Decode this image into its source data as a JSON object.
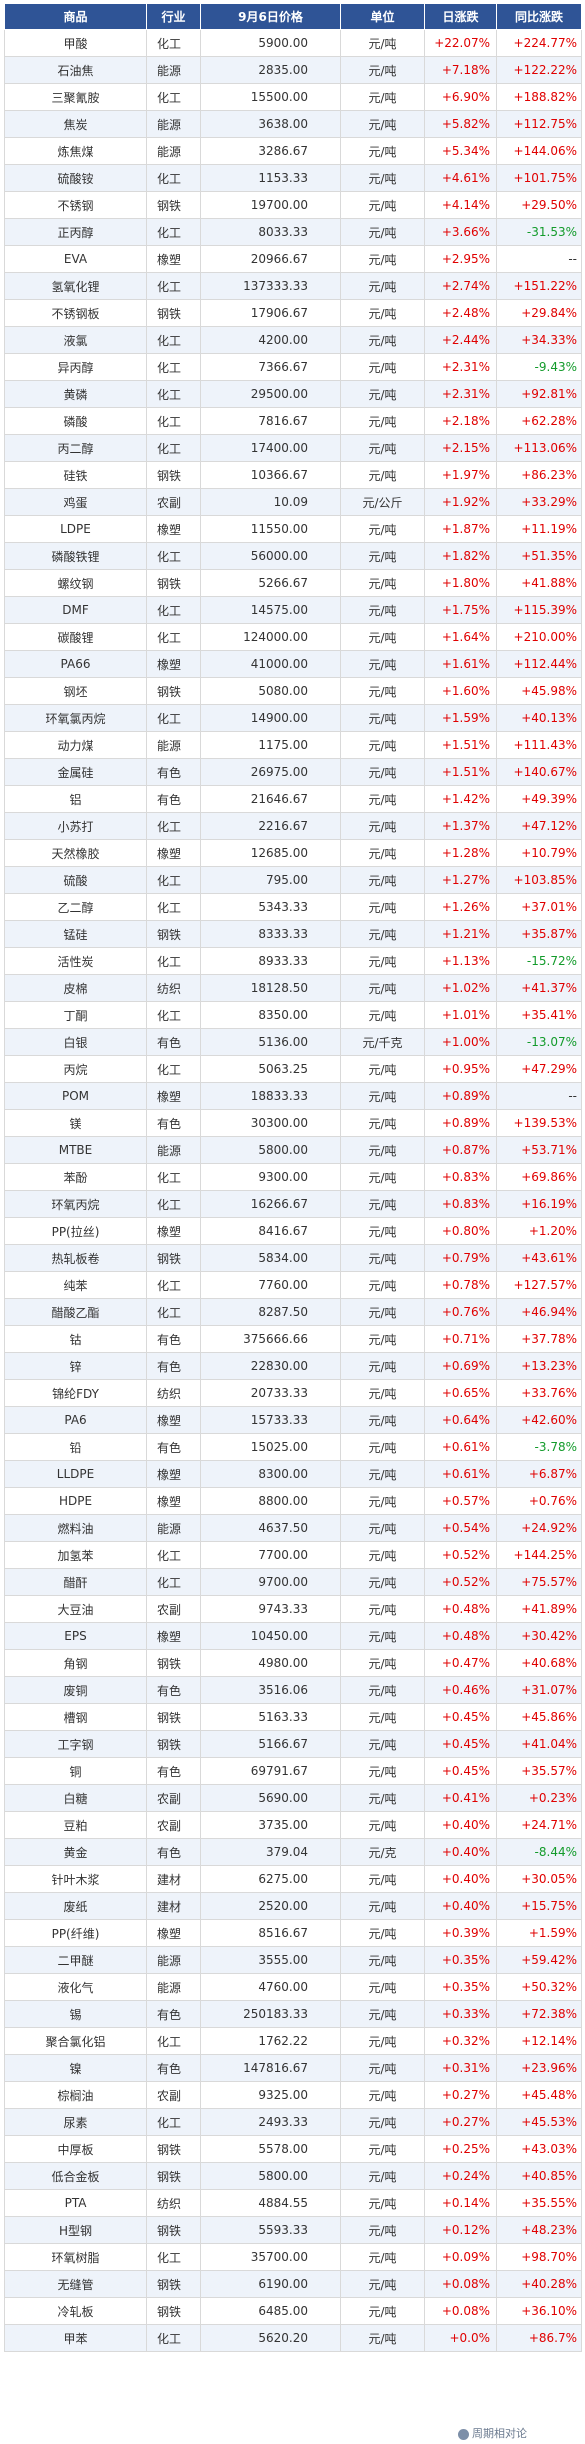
{
  "headers": {
    "name": "商品",
    "industry": "行业",
    "price": "9月6日价格",
    "unit": "单位",
    "day_change": "日涨跌",
    "yoy_change": "同比涨跌"
  },
  "rows": [
    {
      "name": "甲酸",
      "industry": "化工",
      "price": "5900.00",
      "unit": "元/吨",
      "day": "+22.07%",
      "yoy": "+224.77%"
    },
    {
      "name": "石油焦",
      "industry": "能源",
      "price": "2835.00",
      "unit": "元/吨",
      "day": "+7.18%",
      "yoy": "+122.22%"
    },
    {
      "name": "三聚氰胺",
      "industry": "化工",
      "price": "15500.00",
      "unit": "元/吨",
      "day": "+6.90%",
      "yoy": "+188.82%"
    },
    {
      "name": "焦炭",
      "industry": "能源",
      "price": "3638.00",
      "unit": "元/吨",
      "day": "+5.82%",
      "yoy": "+112.75%"
    },
    {
      "name": "炼焦煤",
      "industry": "能源",
      "price": "3286.67",
      "unit": "元/吨",
      "day": "+5.34%",
      "yoy": "+144.06%"
    },
    {
      "name": "硫酸铵",
      "industry": "化工",
      "price": "1153.33",
      "unit": "元/吨",
      "day": "+4.61%",
      "yoy": "+101.75%"
    },
    {
      "name": "不锈钢",
      "industry": "钢铁",
      "price": "19700.00",
      "unit": "元/吨",
      "day": "+4.14%",
      "yoy": "+29.50%"
    },
    {
      "name": "正丙醇",
      "industry": "化工",
      "price": "8033.33",
      "unit": "元/吨",
      "day": "+3.66%",
      "yoy": "-31.53%"
    },
    {
      "name": "EVA",
      "industry": "橡塑",
      "price": "20966.67",
      "unit": "元/吨",
      "day": "+2.95%",
      "yoy": "--"
    },
    {
      "name": "氢氧化锂",
      "industry": "化工",
      "price": "137333.33",
      "unit": "元/吨",
      "day": "+2.74%",
      "yoy": "+151.22%"
    },
    {
      "name": "不锈钢板",
      "industry": "钢铁",
      "price": "17906.67",
      "unit": "元/吨",
      "day": "+2.48%",
      "yoy": "+29.84%"
    },
    {
      "name": "液氯",
      "industry": "化工",
      "price": "4200.00",
      "unit": "元/吨",
      "day": "+2.44%",
      "yoy": "+34.33%"
    },
    {
      "name": "异丙醇",
      "industry": "化工",
      "price": "7366.67",
      "unit": "元/吨",
      "day": "+2.31%",
      "yoy": "-9.43%"
    },
    {
      "name": "黄磷",
      "industry": "化工",
      "price": "29500.00",
      "unit": "元/吨",
      "day": "+2.31%",
      "yoy": "+92.81%"
    },
    {
      "name": "磷酸",
      "industry": "化工",
      "price": "7816.67",
      "unit": "元/吨",
      "day": "+2.18%",
      "yoy": "+62.28%"
    },
    {
      "name": "丙二醇",
      "industry": "化工",
      "price": "17400.00",
      "unit": "元/吨",
      "day": "+2.15%",
      "yoy": "+113.06%"
    },
    {
      "name": "硅铁",
      "industry": "钢铁",
      "price": "10366.67",
      "unit": "元/吨",
      "day": "+1.97%",
      "yoy": "+86.23%"
    },
    {
      "name": "鸡蛋",
      "industry": "农副",
      "price": "10.09",
      "unit": "元/公斤",
      "day": "+1.92%",
      "yoy": "+33.29%"
    },
    {
      "name": "LDPE",
      "industry": "橡塑",
      "price": "11550.00",
      "unit": "元/吨",
      "day": "+1.87%",
      "yoy": "+11.19%"
    },
    {
      "name": "磷酸铁锂",
      "industry": "化工",
      "price": "56000.00",
      "unit": "元/吨",
      "day": "+1.82%",
      "yoy": "+51.35%"
    },
    {
      "name": "螺纹钢",
      "industry": "钢铁",
      "price": "5266.67",
      "unit": "元/吨",
      "day": "+1.80%",
      "yoy": "+41.88%"
    },
    {
      "name": "DMF",
      "industry": "化工",
      "price": "14575.00",
      "unit": "元/吨",
      "day": "+1.75%",
      "yoy": "+115.39%"
    },
    {
      "name": "碳酸锂",
      "industry": "化工",
      "price": "124000.00",
      "unit": "元/吨",
      "day": "+1.64%",
      "yoy": "+210.00%"
    },
    {
      "name": "PA66",
      "industry": "橡塑",
      "price": "41000.00",
      "unit": "元/吨",
      "day": "+1.61%",
      "yoy": "+112.44%"
    },
    {
      "name": "钢坯",
      "industry": "钢铁",
      "price": "5080.00",
      "unit": "元/吨",
      "day": "+1.60%",
      "yoy": "+45.98%"
    },
    {
      "name": "环氧氯丙烷",
      "industry": "化工",
      "price": "14900.00",
      "unit": "元/吨",
      "day": "+1.59%",
      "yoy": "+40.13%"
    },
    {
      "name": "动力煤",
      "industry": "能源",
      "price": "1175.00",
      "unit": "元/吨",
      "day": "+1.51%",
      "yoy": "+111.43%"
    },
    {
      "name": "金属硅",
      "industry": "有色",
      "price": "26975.00",
      "unit": "元/吨",
      "day": "+1.51%",
      "yoy": "+140.67%"
    },
    {
      "name": "铝",
      "industry": "有色",
      "price": "21646.67",
      "unit": "元/吨",
      "day": "+1.42%",
      "yoy": "+49.39%"
    },
    {
      "name": "小苏打",
      "industry": "化工",
      "price": "2216.67",
      "unit": "元/吨",
      "day": "+1.37%",
      "yoy": "+47.12%"
    },
    {
      "name": "天然橡胶",
      "industry": "橡塑",
      "price": "12685.00",
      "unit": "元/吨",
      "day": "+1.28%",
      "yoy": "+10.79%"
    },
    {
      "name": "硫酸",
      "industry": "化工",
      "price": "795.00",
      "unit": "元/吨",
      "day": "+1.27%",
      "yoy": "+103.85%"
    },
    {
      "name": "乙二醇",
      "industry": "化工",
      "price": "5343.33",
      "unit": "元/吨",
      "day": "+1.26%",
      "yoy": "+37.01%"
    },
    {
      "name": "锰硅",
      "industry": "钢铁",
      "price": "8333.33",
      "unit": "元/吨",
      "day": "+1.21%",
      "yoy": "+35.87%"
    },
    {
      "name": "活性炭",
      "industry": "化工",
      "price": "8933.33",
      "unit": "元/吨",
      "day": "+1.13%",
      "yoy": "-15.72%"
    },
    {
      "name": "皮棉",
      "industry": "纺织",
      "price": "18128.50",
      "unit": "元/吨",
      "day": "+1.02%",
      "yoy": "+41.37%"
    },
    {
      "name": "丁酮",
      "industry": "化工",
      "price": "8350.00",
      "unit": "元/吨",
      "day": "+1.01%",
      "yoy": "+35.41%"
    },
    {
      "name": "白银",
      "industry": "有色",
      "price": "5136.00",
      "unit": "元/千克",
      "day": "+1.00%",
      "yoy": "-13.07%"
    },
    {
      "name": "丙烷",
      "industry": "化工",
      "price": "5063.25",
      "unit": "元/吨",
      "day": "+0.95%",
      "yoy": "+47.29%"
    },
    {
      "name": "POM",
      "industry": "橡塑",
      "price": "18833.33",
      "unit": "元/吨",
      "day": "+0.89%",
      "yoy": "--"
    },
    {
      "name": "镁",
      "industry": "有色",
      "price": "30300.00",
      "unit": "元/吨",
      "day": "+0.89%",
      "yoy": "+139.53%"
    },
    {
      "name": "MTBE",
      "industry": "能源",
      "price": "5800.00",
      "unit": "元/吨",
      "day": "+0.87%",
      "yoy": "+53.71%"
    },
    {
      "name": "苯酚",
      "industry": "化工",
      "price": "9300.00",
      "unit": "元/吨",
      "day": "+0.83%",
      "yoy": "+69.86%"
    },
    {
      "name": "环氧丙烷",
      "industry": "化工",
      "price": "16266.67",
      "unit": "元/吨",
      "day": "+0.83%",
      "yoy": "+16.19%"
    },
    {
      "name": "PP(拉丝)",
      "industry": "橡塑",
      "price": "8416.67",
      "unit": "元/吨",
      "day": "+0.80%",
      "yoy": "+1.20%"
    },
    {
      "name": "热轧板卷",
      "industry": "钢铁",
      "price": "5834.00",
      "unit": "元/吨",
      "day": "+0.79%",
      "yoy": "+43.61%"
    },
    {
      "name": "纯苯",
      "industry": "化工",
      "price": "7760.00",
      "unit": "元/吨",
      "day": "+0.78%",
      "yoy": "+127.57%"
    },
    {
      "name": "醋酸乙酯",
      "industry": "化工",
      "price": "8287.50",
      "unit": "元/吨",
      "day": "+0.76%",
      "yoy": "+46.94%"
    },
    {
      "name": "钴",
      "industry": "有色",
      "price": "375666.66",
      "unit": "元/吨",
      "day": "+0.71%",
      "yoy": "+37.78%"
    },
    {
      "name": "锌",
      "industry": "有色",
      "price": "22830.00",
      "unit": "元/吨",
      "day": "+0.69%",
      "yoy": "+13.23%"
    },
    {
      "name": "锦纶FDY",
      "industry": "纺织",
      "price": "20733.33",
      "unit": "元/吨",
      "day": "+0.65%",
      "yoy": "+33.76%"
    },
    {
      "name": "PA6",
      "industry": "橡塑",
      "price": "15733.33",
      "unit": "元/吨",
      "day": "+0.64%",
      "yoy": "+42.60%"
    },
    {
      "name": "铅",
      "industry": "有色",
      "price": "15025.00",
      "unit": "元/吨",
      "day": "+0.61%",
      "yoy": "-3.78%"
    },
    {
      "name": "LLDPE",
      "industry": "橡塑",
      "price": "8300.00",
      "unit": "元/吨",
      "day": "+0.61%",
      "yoy": "+6.87%"
    },
    {
      "name": "HDPE",
      "industry": "橡塑",
      "price": "8800.00",
      "unit": "元/吨",
      "day": "+0.57%",
      "yoy": "+0.76%"
    },
    {
      "name": "燃料油",
      "industry": "能源",
      "price": "4637.50",
      "unit": "元/吨",
      "day": "+0.54%",
      "yoy": "+24.92%"
    },
    {
      "name": "加氢苯",
      "industry": "化工",
      "price": "7700.00",
      "unit": "元/吨",
      "day": "+0.52%",
      "yoy": "+144.25%"
    },
    {
      "name": "醋酐",
      "industry": "化工",
      "price": "9700.00",
      "unit": "元/吨",
      "day": "+0.52%",
      "yoy": "+75.57%"
    },
    {
      "name": "大豆油",
      "industry": "农副",
      "price": "9743.33",
      "unit": "元/吨",
      "day": "+0.48%",
      "yoy": "+41.89%"
    },
    {
      "name": "EPS",
      "industry": "橡塑",
      "price": "10450.00",
      "unit": "元/吨",
      "day": "+0.48%",
      "yoy": "+30.42%"
    },
    {
      "name": "角钢",
      "industry": "钢铁",
      "price": "4980.00",
      "unit": "元/吨",
      "day": "+0.47%",
      "yoy": "+40.68%"
    },
    {
      "name": "废铜",
      "industry": "有色",
      "price": "3516.06",
      "unit": "元/吨",
      "day": "+0.46%",
      "yoy": "+31.07%"
    },
    {
      "name": "槽钢",
      "industry": "钢铁",
      "price": "5163.33",
      "unit": "元/吨",
      "day": "+0.45%",
      "yoy": "+45.86%"
    },
    {
      "name": "工字钢",
      "industry": "钢铁",
      "price": "5166.67",
      "unit": "元/吨",
      "day": "+0.45%",
      "yoy": "+41.04%"
    },
    {
      "name": "铜",
      "industry": "有色",
      "price": "69791.67",
      "unit": "元/吨",
      "day": "+0.45%",
      "yoy": "+35.57%"
    },
    {
      "name": "白糖",
      "industry": "农副",
      "price": "5690.00",
      "unit": "元/吨",
      "day": "+0.41%",
      "yoy": "+0.23%"
    },
    {
      "name": "豆粕",
      "industry": "农副",
      "price": "3735.00",
      "unit": "元/吨",
      "day": "+0.40%",
      "yoy": "+24.71%"
    },
    {
      "name": "黄金",
      "industry": "有色",
      "price": "379.04",
      "unit": "元/克",
      "day": "+0.40%",
      "yoy": "-8.44%"
    },
    {
      "name": "针叶木浆",
      "industry": "建材",
      "price": "6275.00",
      "unit": "元/吨",
      "day": "+0.40%",
      "yoy": "+30.05%"
    },
    {
      "name": "废纸",
      "industry": "建材",
      "price": "2520.00",
      "unit": "元/吨",
      "day": "+0.40%",
      "yoy": "+15.75%"
    },
    {
      "name": "PP(纤维)",
      "industry": "橡塑",
      "price": "8516.67",
      "unit": "元/吨",
      "day": "+0.39%",
      "yoy": "+1.59%"
    },
    {
      "name": "二甲醚",
      "industry": "能源",
      "price": "3555.00",
      "unit": "元/吨",
      "day": "+0.35%",
      "yoy": "+59.42%"
    },
    {
      "name": "液化气",
      "industry": "能源",
      "price": "4760.00",
      "unit": "元/吨",
      "day": "+0.35%",
      "yoy": "+50.32%"
    },
    {
      "name": "锡",
      "industry": "有色",
      "price": "250183.33",
      "unit": "元/吨",
      "day": "+0.33%",
      "yoy": "+72.38%"
    },
    {
      "name": "聚合氯化铝",
      "industry": "化工",
      "price": "1762.22",
      "unit": "元/吨",
      "day": "+0.32%",
      "yoy": "+12.14%"
    },
    {
      "name": "镍",
      "industry": "有色",
      "price": "147816.67",
      "unit": "元/吨",
      "day": "+0.31%",
      "yoy": "+23.96%"
    },
    {
      "name": "棕榈油",
      "industry": "农副",
      "price": "9325.00",
      "unit": "元/吨",
      "day": "+0.27%",
      "yoy": "+45.48%"
    },
    {
      "name": "尿素",
      "industry": "化工",
      "price": "2493.33",
      "unit": "元/吨",
      "day": "+0.27%",
      "yoy": "+45.53%"
    },
    {
      "name": "中厚板",
      "industry": "钢铁",
      "price": "5578.00",
      "unit": "元/吨",
      "day": "+0.25%",
      "yoy": "+43.03%"
    },
    {
      "name": "低合金板",
      "industry": "钢铁",
      "price": "5800.00",
      "unit": "元/吨",
      "day": "+0.24%",
      "yoy": "+40.85%"
    },
    {
      "name": "PTA",
      "industry": "纺织",
      "price": "4884.55",
      "unit": "元/吨",
      "day": "+0.14%",
      "yoy": "+35.55%"
    },
    {
      "name": "H型钢",
      "industry": "钢铁",
      "price": "5593.33",
      "unit": "元/吨",
      "day": "+0.12%",
      "yoy": "+48.23%"
    },
    {
      "name": "环氧树脂",
      "industry": "化工",
      "price": "35700.00",
      "unit": "元/吨",
      "day": "+0.09%",
      "yoy": "+98.70%"
    },
    {
      "name": "无缝管",
      "industry": "钢铁",
      "price": "6190.00",
      "unit": "元/吨",
      "day": "+0.08%",
      "yoy": "+40.28%"
    },
    {
      "name": "冷轧板",
      "industry": "钢铁",
      "price": "6485.00",
      "unit": "元/吨",
      "day": "+0.08%",
      "yoy": "+36.10%"
    },
    {
      "name": "甲苯",
      "industry": "化工",
      "price": "5620.20",
      "unit": "元/吨",
      "day": "+0.0%",
      "yoy": "+86.7%"
    }
  ],
  "watermark": "周期相对论",
  "colors": {
    "header_bg": "#2f5496",
    "up": "#e00000",
    "down": "#139b2b",
    "stripe": "#eef3fa"
  }
}
